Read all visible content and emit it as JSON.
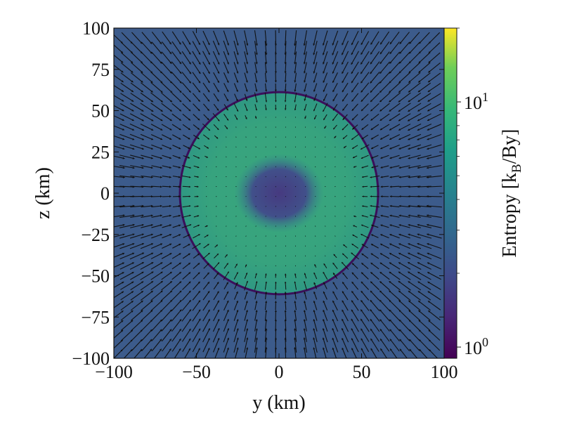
{
  "chart_data": {
    "type": "heatmap",
    "title": "",
    "xlabel": "y  (km)",
    "ylabel": "z  (km)",
    "xlim": [
      -100,
      100
    ],
    "ylim": [
      -100,
      100
    ],
    "xticks": [
      -100,
      -50,
      0,
      50,
      100
    ],
    "yticks": [
      -100,
      -75,
      -50,
      -25,
      0,
      25,
      50,
      75,
      100
    ],
    "xtick_labels": [
      "−100",
      "−50",
      "0",
      "50",
      "100"
    ],
    "ytick_labels": [
      "100",
      "75",
      "50",
      "25",
      "0",
      "−25",
      "−50",
      "−75",
      "−100"
    ],
    "colorbar": {
      "label": "Entropy [k_B/By]",
      "label_main": "Entropy [k",
      "label_sub": "B",
      "label_tail": "/By]",
      "scale": "log",
      "range": [
        0.9,
        20
      ],
      "tick_labels": [
        {
          "value": 1,
          "base": "10",
          "exp": "0"
        },
        {
          "value": 10,
          "base": "10",
          "exp": "1"
        }
      ],
      "colormap": "viridis"
    },
    "background_entropy": 2.0,
    "shell": {
      "radius_km": 60,
      "entropy": 5.5,
      "color": "#3b0f5a"
    },
    "core": {
      "center_km": [
        0,
        0
      ],
      "radius_y_km": 17,
      "radius_z_km": 15,
      "entropy": 1.6
    },
    "velocity_field": {
      "outside": "radially inward, strong",
      "inside": "small, weak"
    },
    "colors": {
      "background": "#3c5c8c",
      "shell_fill": "#3aa47d",
      "core": "#3f4c8a",
      "arrow": "#111111",
      "contour": "#3b0f5a"
    }
  }
}
